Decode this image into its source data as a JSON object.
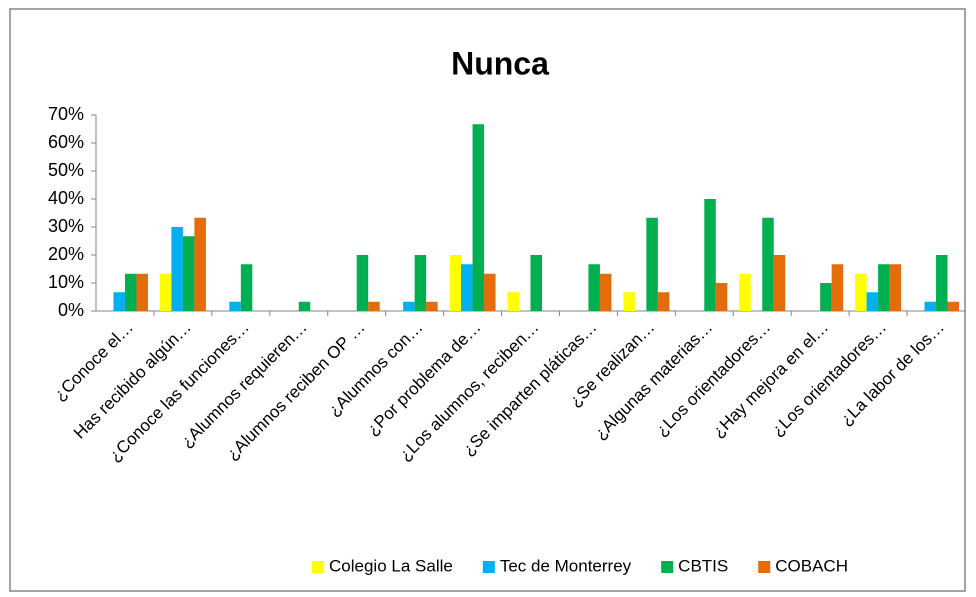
{
  "chart_data": {
    "type": "bar",
    "title": "Nunca",
    "categories": [
      "¿Conoce el…",
      "Has recibido algún…",
      "¿Conoce las funciones…",
      "¿Alumnos requieren…",
      "¿Alumnos reciben OP …",
      "¿Alumnos con…",
      "¿Por problema de…",
      "¿Los alumnos, reciben…",
      "¿Se imparten pláticas…",
      "¿Se realizan…",
      "¿Algunas materias…",
      "¿Los orientadores…",
      "¿Hay mejora en el…",
      "¿Los orientadores…",
      "¿La labor de los…"
    ],
    "series": [
      {
        "name": "Colegio La Salle",
        "color": "#ffff00",
        "values": [
          0,
          13.3,
          0,
          0,
          0,
          0,
          20,
          6.7,
          0,
          6.7,
          0,
          13.3,
          0,
          13.3,
          0
        ]
      },
      {
        "name": "Tec de Monterrey",
        "color": "#00b0f0",
        "values": [
          6.7,
          30,
          3.3,
          0,
          0,
          3.3,
          16.7,
          0,
          0,
          0,
          0,
          0,
          0,
          6.7,
          3.3
        ]
      },
      {
        "name": "CBTIS",
        "color": "#00b050",
        "values": [
          13.3,
          26.7,
          16.7,
          3.3,
          20,
          20,
          66.7,
          20,
          16.7,
          33.3,
          40,
          33.3,
          10,
          16.7,
          20
        ]
      },
      {
        "name": "COBACH",
        "color": "#e46c0a",
        "values": [
          13.3,
          33.3,
          0,
          0,
          3.3,
          3.3,
          13.3,
          0,
          13.3,
          6.7,
          10,
          20,
          16.7,
          16.7,
          3.3
        ]
      }
    ],
    "ylim": [
      0,
      70
    ],
    "yticks": [
      {
        "value": 0,
        "label": "0%"
      },
      {
        "value": 10,
        "label": "10%"
      },
      {
        "value": 20,
        "label": "20%"
      },
      {
        "value": 30,
        "label": "30%"
      },
      {
        "value": 40,
        "label": "40%"
      },
      {
        "value": 50,
        "label": "50%"
      },
      {
        "value": 60,
        "label": "60%"
      },
      {
        "value": 70,
        "label": "70%"
      }
    ],
    "grid": false,
    "legend": "bottom"
  }
}
